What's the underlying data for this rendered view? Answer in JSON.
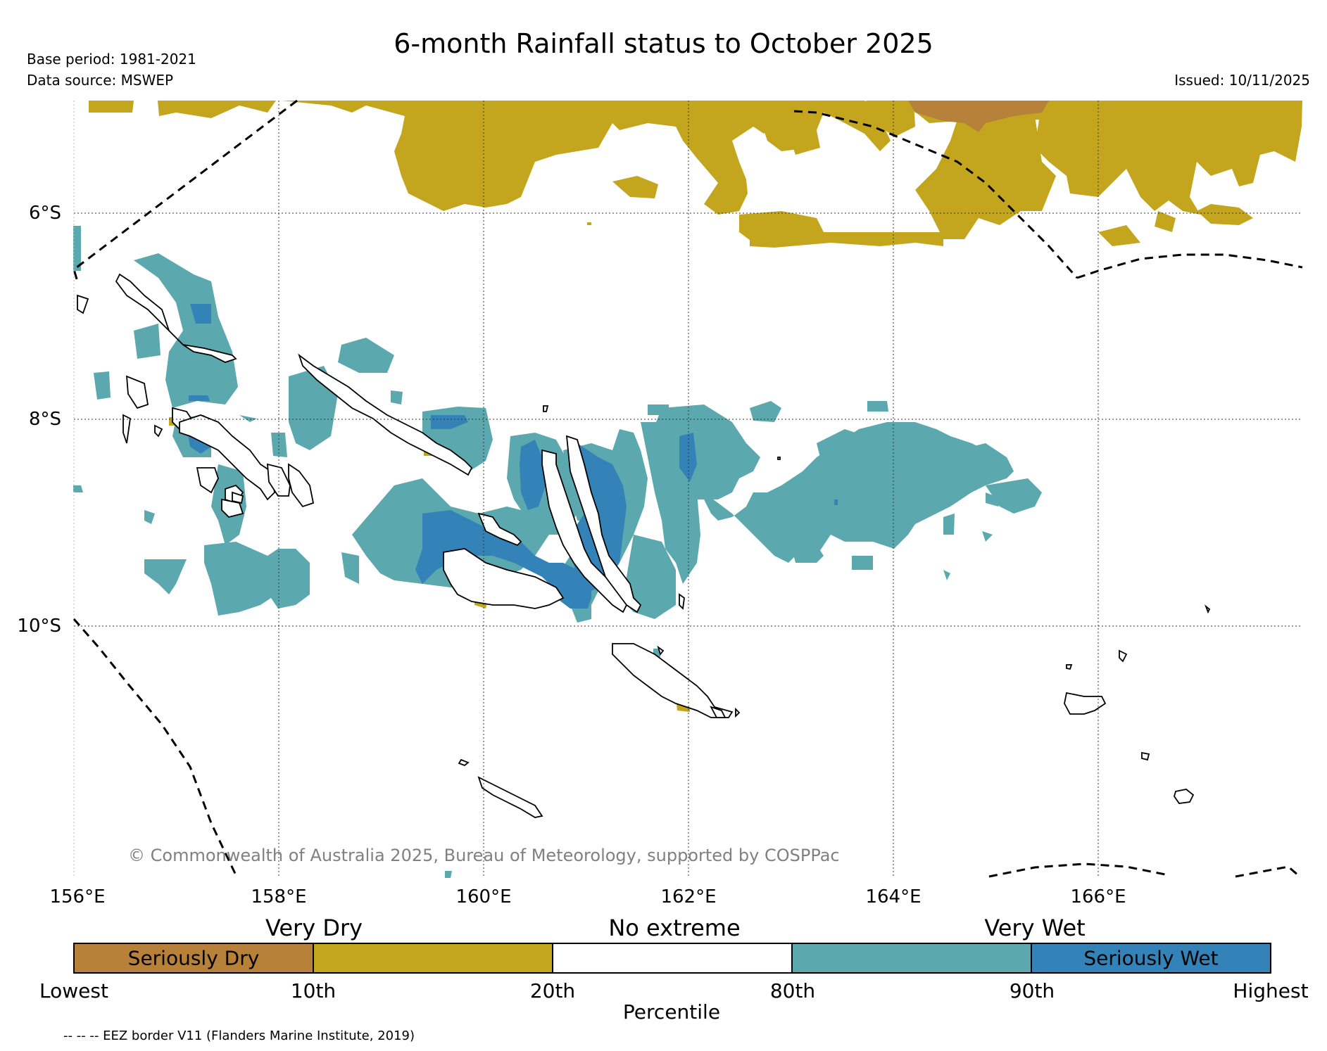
{
  "header": {
    "title": "6-month Rainfall status to October 2025",
    "base_period": "Base period: 1981-2021",
    "data_source": "Data source: MSWEP",
    "issued": "Issued: 10/11/2025"
  },
  "map": {
    "lon_labels": [
      "156°E",
      "158°E",
      "160°E",
      "162°E",
      "164°E",
      "166°E"
    ],
    "lat_labels": [
      "6°S",
      "8°S",
      "10°S"
    ],
    "copyright": "© Commonwealth of Australia 2025, Bureau of Meteorology, supported by COSPPac",
    "colors": {
      "seriously_dry": "#b7813a",
      "very_dry": "#c4a51e",
      "no_extreme": "#ffffff",
      "very_wet": "#5ba8af",
      "seriously_wet": "#3383b8"
    }
  },
  "legend": {
    "categories": [
      "Very Dry",
      "No extreme",
      "Very Wet"
    ],
    "segments": [
      {
        "label": "Seriously Dry",
        "color": "#b7813a"
      },
      {
        "label": "",
        "color": "#c4a51e"
      },
      {
        "label": "",
        "color": "#ffffff"
      },
      {
        "label": "",
        "color": "#5ba8af"
      },
      {
        "label": "Seriously Wet",
        "color": "#3383b8"
      }
    ],
    "ticks": [
      "Lowest",
      "10th",
      "20th",
      "80th",
      "90th",
      "Highest"
    ],
    "title": "Percentile",
    "eez_note": "-- -- -- EEZ border V11 (Flanders Marine Institute, 2019)"
  }
}
